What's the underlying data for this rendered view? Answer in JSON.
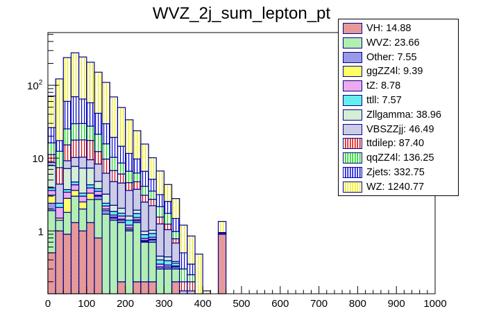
{
  "chart_data": {
    "type": "bar",
    "stacked": true,
    "title": "WVZ_2j_sum_lepton_pt",
    "xlabel": "",
    "ylabel": "",
    "xlim": [
      0,
      1000
    ],
    "ylim": [
      0.137,
      530
    ],
    "yscale": "log",
    "bin_width": 20,
    "x_ticks": [
      "0",
      "100",
      "200",
      "300",
      "400",
      "500",
      "600",
      "700",
      "800",
      "900",
      "1000"
    ],
    "y_ticks": [
      {
        "value": 1,
        "label": "1"
      },
      {
        "value": 10,
        "label": "10"
      },
      {
        "value": 100,
        "label": "10^2"
      }
    ],
    "legend_position": "top-right",
    "bin_edges_start": 0,
    "series": [
      {
        "name": "VH",
        "legend": "VH: 14.88",
        "color": "#cc3333",
        "pattern": "checker",
        "values": [
          0.5,
          1.0,
          0.9,
          1.3,
          1.0,
          1.3,
          0.8,
          0,
          0,
          0.2,
          0,
          0.2,
          0.2,
          0.2,
          0,
          0,
          0.2,
          0,
          0,
          0,
          0,
          0,
          0.9,
          0,
          0,
          0,
          0,
          0,
          0,
          0,
          0,
          0,
          0,
          0,
          0,
          0,
          0,
          0,
          0,
          0,
          0,
          0,
          0,
          0,
          0,
          0,
          0,
          0,
          0,
          0
        ]
      },
      {
        "name": "WVZ",
        "legend": "WVZ: 23.66",
        "color": "#66dd66",
        "pattern": "checker",
        "values": [
          1.4,
          0.4,
          0.9,
          1.7,
          1.0,
          1.4,
          1.9,
          1.7,
          1.4,
          1.1,
          1.0,
          1.1,
          0.5,
          0.5,
          0.3,
          0.3,
          0.1,
          0.05,
          0.05,
          0,
          0,
          0,
          0.03,
          0,
          0,
          0,
          0,
          0,
          0,
          0,
          0,
          0,
          0,
          0,
          0,
          0,
          0,
          0,
          0,
          0,
          0,
          0,
          0,
          0,
          0,
          0,
          0,
          0,
          0,
          0
        ]
      },
      {
        "name": "Other",
        "legend": "Other: 7.55",
        "color": "#3333cc",
        "pattern": "checker",
        "values": [
          0.5,
          0,
          0,
          0,
          0,
          0,
          0.3,
          0.2,
          0.1,
          0.1,
          0.05,
          0.08,
          0.02,
          0.05,
          0.02,
          0.02,
          0.02,
          0,
          0,
          0,
          0,
          0,
          0.02,
          0,
          0,
          0,
          0,
          0,
          0,
          0,
          0,
          0,
          0,
          0,
          0,
          0,
          0,
          0,
          0,
          0,
          0,
          0,
          0,
          0,
          0,
          0,
          0,
          0,
          0,
          0
        ]
      },
      {
        "name": "ggZZ4l",
        "legend": "ggZZ4l: 9.39",
        "color": "#ffff66",
        "pattern": "solid",
        "values": [
          0.7,
          0.1,
          1.0,
          0.6,
          0.5,
          0.6,
          0.1,
          0.1,
          0.05,
          0.05,
          0.05,
          0.05,
          0.02,
          0.02,
          0,
          0,
          0,
          0,
          0,
          0,
          0,
          0,
          0,
          0,
          0,
          0,
          0,
          0,
          0,
          0,
          0,
          0,
          0,
          0,
          0,
          0,
          0,
          0,
          0,
          0,
          0,
          0,
          0,
          0,
          0,
          0,
          0,
          0,
          0,
          0
        ]
      },
      {
        "name": "tZ",
        "legend": "tZ: 8.78",
        "color": "#dd55dd",
        "pattern": "checker",
        "values": [
          0.5,
          0.6,
          0.6,
          0.7,
          0.5,
          0.6,
          0.4,
          0.2,
          0.1,
          0.15,
          0.1,
          0.1,
          0.05,
          0.05,
          0.03,
          0.02,
          0.01,
          0,
          0,
          0,
          0,
          0,
          0,
          0,
          0,
          0,
          0,
          0,
          0,
          0,
          0,
          0,
          0,
          0,
          0,
          0,
          0,
          0,
          0,
          0,
          0,
          0,
          0,
          0,
          0,
          0,
          0,
          0,
          0,
          0
        ]
      },
      {
        "name": "ttll",
        "legend": "ttll: 7.57",
        "color": "#66eeee",
        "pattern": "solid",
        "values": [
          0.3,
          0.3,
          0.3,
          0.4,
          0.3,
          0.4,
          0.3,
          0.2,
          0.2,
          0.15,
          0.2,
          0.2,
          0.1,
          0.1,
          0.05,
          0.05,
          0.03,
          0,
          0,
          0,
          0,
          0,
          0,
          0,
          0,
          0,
          0,
          0,
          0,
          0,
          0,
          0,
          0,
          0,
          0,
          0,
          0,
          0,
          0,
          0,
          0,
          0,
          0,
          0,
          0,
          0,
          0,
          0,
          0,
          0
        ]
      },
      {
        "name": "Zllgamma",
        "legend": "Zllgamma: 38.96",
        "color": "#aaddaa",
        "pattern": "checker",
        "values": [
          4.0,
          0,
          3.5,
          3.0,
          4.0,
          3.0,
          1.0,
          0.8,
          0.4,
          0.3,
          0.2,
          0.2,
          0.1,
          0.1,
          0.05,
          0.05,
          0.02,
          0,
          0,
          0,
          0,
          0,
          0,
          0,
          0,
          0,
          0,
          0,
          0,
          0,
          0,
          0,
          0,
          0,
          0,
          0,
          0,
          0,
          0,
          0,
          0,
          0,
          0,
          0,
          0,
          0,
          0,
          0,
          0,
          0
        ]
      },
      {
        "name": "VBSZZjj",
        "legend": "VBSZZjj: 46.49",
        "color": "#9999cc",
        "pattern": "checker",
        "values": [
          0.8,
          2.0,
          2.0,
          2.5,
          3.0,
          2.2,
          3.5,
          3.0,
          2.5,
          2.5,
          2.0,
          1.8,
          1.5,
          1.2,
          0.8,
          0.6,
          0.3,
          0.1,
          0.1,
          0,
          0,
          0,
          0,
          0,
          0,
          0,
          0,
          0,
          0,
          0,
          0,
          0,
          0,
          0,
          0,
          0,
          0,
          0,
          0,
          0,
          0,
          0,
          0,
          0,
          0,
          0,
          0,
          0,
          0,
          0
        ]
      },
      {
        "name": "ttdilep",
        "legend": "ttdilep: 87.40",
        "color": "#dd0000",
        "pattern": "vlines",
        "values": [
          2.5,
          3.0,
          6.0,
          7.5,
          7.5,
          8.0,
          4.0,
          3.5,
          2.0,
          1.5,
          1.0,
          1.0,
          0.6,
          0.5,
          0.3,
          0.2,
          0.1,
          0.05,
          0.05,
          0,
          0,
          0,
          0,
          0,
          0,
          0,
          0,
          0,
          0,
          0,
          0,
          0,
          0,
          0,
          0,
          0,
          0,
          0,
          0,
          0,
          0,
          0,
          0,
          0,
          0,
          0,
          0,
          0,
          0,
          0
        ]
      },
      {
        "name": "qqZZ4l",
        "legend": "qqZZ4l: 136.25",
        "color": "#00dd00",
        "pattern": "vlines",
        "values": [
          5.0,
          5.0,
          10.0,
          12.0,
          12.0,
          10.0,
          9.0,
          6.0,
          3.5,
          2.5,
          2.0,
          1.5,
          1.0,
          0.8,
          0.6,
          0.5,
          0.2,
          0.1,
          0.05,
          0.03,
          0,
          0,
          0,
          0,
          0,
          0,
          0,
          0,
          0,
          0,
          0,
          0,
          0,
          0,
          0,
          0,
          0,
          0,
          0,
          0,
          0,
          0,
          0,
          0,
          0,
          0,
          0,
          0,
          0,
          0
        ]
      },
      {
        "name": "Zjets",
        "legend": "Zjets: 332.75",
        "color": "#0000dd",
        "pattern": "vlines",
        "values": [
          10.0,
          5.0,
          35.0,
          40.0,
          35.0,
          30.0,
          20.0,
          14.0,
          9.0,
          6.0,
          5.0,
          3.5,
          2.5,
          1.6,
          1.0,
          0.8,
          0.5,
          0.2,
          0.1,
          0.05,
          0,
          0,
          0,
          0,
          0,
          0,
          0,
          0,
          0,
          0,
          0,
          0,
          0,
          0,
          0,
          0,
          0,
          0,
          0,
          0,
          0,
          0,
          0,
          0,
          0,
          0,
          0,
          0,
          0,
          0
        ]
      },
      {
        "name": "WZ",
        "legend": "WZ: 1240.77",
        "color": "#eeee00",
        "pattern": "vlines",
        "values": [
          45,
          105,
          180,
          210,
          180,
          150,
          110,
          80,
          50,
          35,
          22,
          14,
          9,
          5.0,
          3.5,
          1.8,
          1.3,
          0.7,
          0.5,
          0.4,
          0.15,
          0.1,
          0.4,
          0,
          0,
          0.02,
          0.03,
          0,
          0,
          0,
          0,
          0,
          0,
          0,
          0,
          0,
          0,
          0,
          0,
          0,
          0,
          0,
          0,
          0,
          0,
          0,
          0,
          0,
          0,
          0
        ]
      }
    ]
  }
}
